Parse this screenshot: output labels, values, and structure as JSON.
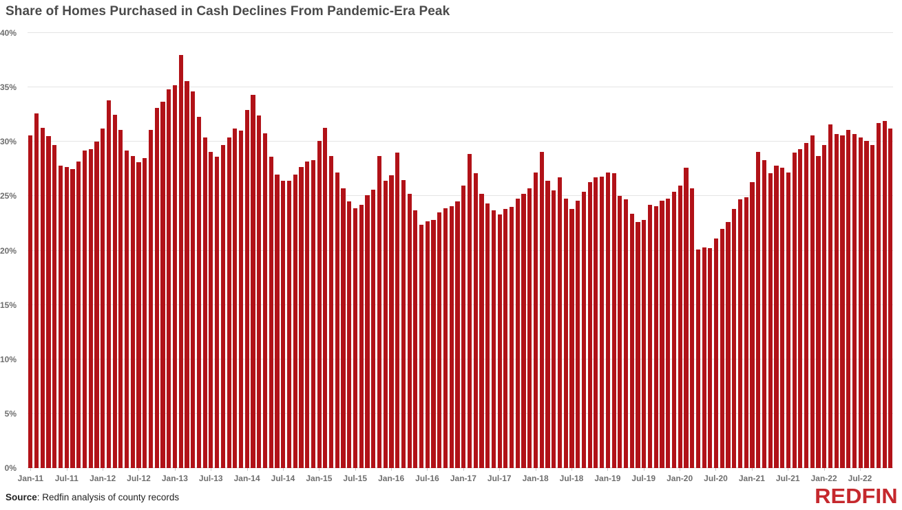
{
  "title": "Share of Homes Purchased in Cash Declines From Pandemic-Era Peak",
  "source": {
    "label": "Source",
    "rest": ": Redfin analysis of county records"
  },
  "logo_text": "REDFIN",
  "colors": {
    "bar": "#b11218",
    "logo_red": "#c5282d",
    "gridline": "#e4e4e4",
    "title_text": "#4a4a4a",
    "axis_text": "#6e6e6e"
  },
  "chart_data": {
    "type": "bar",
    "title": "Share of Homes Purchased in Cash Declines From Pandemic-Era Peak",
    "xlabel": "",
    "ylabel": "",
    "ylim": [
      0,
      40
    ],
    "y_tick_step": 5,
    "y_tick_labels": [
      "0%",
      "5%",
      "10%",
      "15%",
      "20%",
      "25%",
      "30%",
      "35%",
      "40%"
    ],
    "x_tick_labels": [
      "Jan-11",
      "Jul-11",
      "Jan-12",
      "Jul-12",
      "Jan-13",
      "Jul-13",
      "Jan-14",
      "Jul-14",
      "Jan-15",
      "Jul-15",
      "Jan-16",
      "Jul-16",
      "Jan-17",
      "Jul-17",
      "Jan-18",
      "Jul-18",
      "Jan-19",
      "Jul-19",
      "Jan-20",
      "Jul-20",
      "Jan-21",
      "Jul-21",
      "Jan-22",
      "Jul-22"
    ],
    "grid": true,
    "legend": "none",
    "categories": [
      "Jan-11",
      "Feb-11",
      "Mar-11",
      "Apr-11",
      "May-11",
      "Jun-11",
      "Jul-11",
      "Aug-11",
      "Sep-11",
      "Oct-11",
      "Nov-11",
      "Dec-11",
      "Jan-12",
      "Feb-12",
      "Mar-12",
      "Apr-12",
      "May-12",
      "Jun-12",
      "Jul-12",
      "Aug-12",
      "Sep-12",
      "Oct-12",
      "Nov-12",
      "Dec-12",
      "Jan-13",
      "Feb-13",
      "Mar-13",
      "Apr-13",
      "May-13",
      "Jun-13",
      "Jul-13",
      "Aug-13",
      "Sep-13",
      "Oct-13",
      "Nov-13",
      "Dec-13",
      "Jan-14",
      "Feb-14",
      "Mar-14",
      "Apr-14",
      "May-14",
      "Jun-14",
      "Jul-14",
      "Aug-14",
      "Sep-14",
      "Oct-14",
      "Nov-14",
      "Dec-14",
      "Jan-15",
      "Feb-15",
      "Mar-15",
      "Apr-15",
      "May-15",
      "Jun-15",
      "Jul-15",
      "Aug-15",
      "Sep-15",
      "Oct-15",
      "Nov-15",
      "Dec-15",
      "Jan-16",
      "Feb-16",
      "Mar-16",
      "Apr-16",
      "May-16",
      "Jun-16",
      "Jul-16",
      "Aug-16",
      "Sep-16",
      "Oct-16",
      "Nov-16",
      "Dec-16",
      "Jan-17",
      "Feb-17",
      "Mar-17",
      "Apr-17",
      "May-17",
      "Jun-17",
      "Jul-17",
      "Aug-17",
      "Sep-17",
      "Oct-17",
      "Nov-17",
      "Dec-17",
      "Jan-18",
      "Feb-18",
      "Mar-18",
      "Apr-18",
      "May-18",
      "Jun-18",
      "Jul-18",
      "Aug-18",
      "Sep-18",
      "Oct-18",
      "Nov-18",
      "Dec-18",
      "Jan-19",
      "Feb-19",
      "Mar-19",
      "Apr-19",
      "May-19",
      "Jun-19",
      "Jul-19",
      "Aug-19",
      "Sep-19",
      "Oct-19",
      "Nov-19",
      "Dec-19",
      "Jan-20",
      "Feb-20",
      "Mar-20",
      "Apr-20",
      "May-20",
      "Jun-20",
      "Jul-20",
      "Aug-20",
      "Sep-20",
      "Oct-20",
      "Nov-20",
      "Dec-20",
      "Jan-21",
      "Feb-21",
      "Mar-21",
      "Apr-21",
      "May-21",
      "Jun-21",
      "Jul-21",
      "Aug-21",
      "Sep-21",
      "Oct-21",
      "Nov-21",
      "Dec-21",
      "Jan-22",
      "Feb-22",
      "Mar-22",
      "Apr-22",
      "May-22",
      "Jun-22",
      "Jul-22",
      "Aug-22",
      "Sep-22",
      "Oct-22",
      "Nov-22",
      "Dec-22"
    ],
    "values": [
      30.6,
      32.6,
      31.3,
      30.5,
      29.7,
      27.8,
      27.7,
      27.5,
      28.2,
      29.2,
      29.3,
      30.0,
      31.2,
      33.8,
      32.5,
      31.1,
      29.2,
      28.7,
      28.1,
      28.5,
      31.1,
      33.1,
      33.7,
      34.8,
      35.2,
      38.0,
      35.6,
      34.6,
      32.3,
      30.4,
      29.1,
      28.6,
      29.7,
      30.4,
      31.2,
      31.0,
      32.9,
      34.3,
      32.4,
      30.8,
      28.6,
      27.0,
      26.4,
      26.4,
      27.0,
      27.7,
      28.2,
      28.3,
      30.1,
      31.3,
      28.7,
      27.2,
      25.7,
      24.5,
      23.9,
      24.2,
      25.1,
      25.6,
      28.7,
      26.4,
      26.9,
      29.0,
      26.5,
      25.2,
      23.7,
      22.4,
      22.7,
      22.8,
      23.5,
      23.9,
      24.1,
      24.5,
      26.0,
      28.9,
      27.1,
      25.2,
      24.3,
      23.7,
      23.3,
      23.8,
      24.0,
      24.8,
      25.2,
      25.7,
      27.2,
      29.1,
      26.4,
      25.5,
      26.7,
      24.8,
      23.8,
      24.6,
      25.4,
      26.3,
      26.7,
      26.8,
      27.2,
      27.1,
      25.0,
      24.7,
      23.4,
      22.6,
      22.8,
      24.2,
      24.1,
      24.6,
      24.8,
      25.4,
      26.0,
      27.6,
      25.7,
      20.1,
      20.3,
      20.2,
      21.1,
      22.0,
      22.6,
      23.8,
      24.7,
      24.9,
      26.3,
      29.1,
      28.3,
      27.1,
      27.8,
      27.6,
      27.2,
      29.0,
      29.3,
      29.9,
      30.6,
      28.7,
      29.7,
      31.6,
      30.7,
      30.6,
      31.1,
      30.7,
      30.4,
      30.1,
      29.7,
      31.7,
      31.9,
      31.2
    ]
  }
}
